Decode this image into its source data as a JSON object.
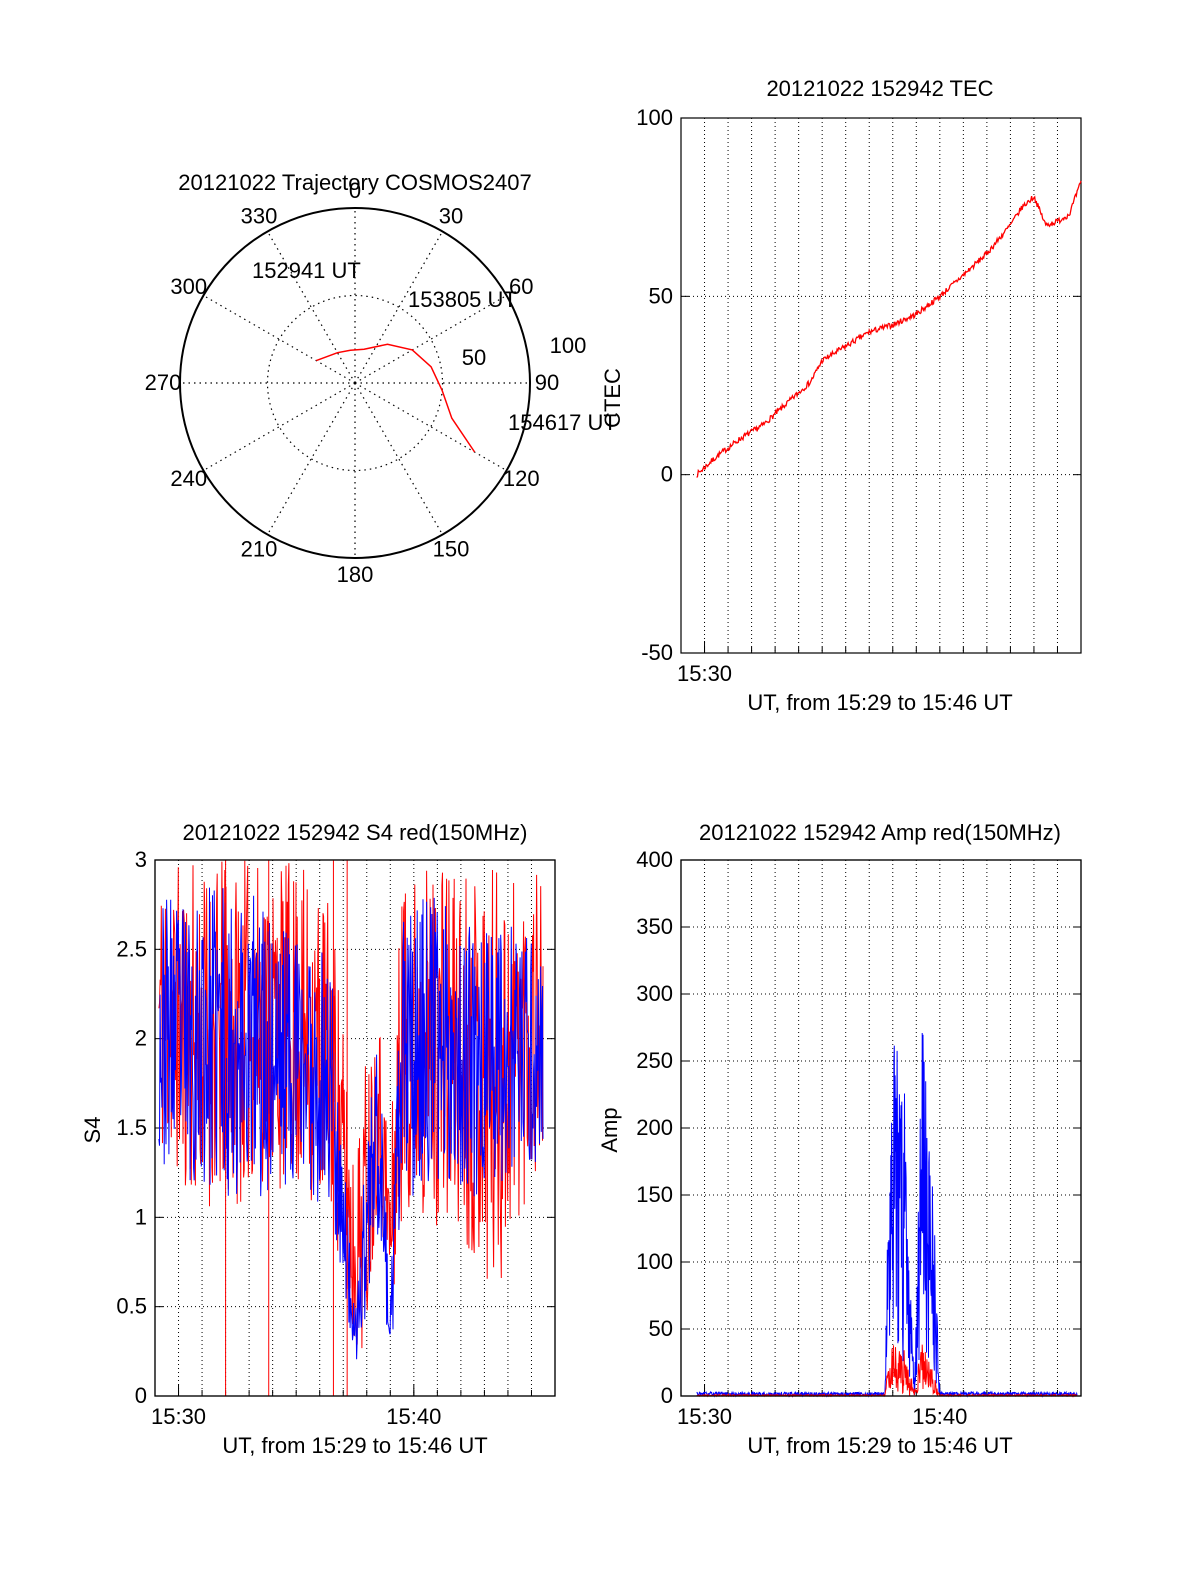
{
  "chart_data": [
    {
      "type": "polar",
      "title": "20121022 Trajectory COSMOS2407",
      "azimuth_ticks": [
        "0",
        "30",
        "60",
        "90",
        "120",
        "150",
        "180",
        "210",
        "240",
        "270",
        "300",
        "330"
      ],
      "radial_ticks": [
        "50",
        "100"
      ],
      "radial_range": [
        0,
        100
      ],
      "grid": true,
      "track_color": "#ff0000",
      "track": [
        {
          "az": 300,
          "el": 67
        },
        {
          "az": 330,
          "el": 72
        },
        {
          "az": 352,
          "el": 73
        },
        {
          "az": 15,
          "el": 72
        },
        {
          "az": 40,
          "el": 64
        },
        {
          "az": 60,
          "el": 56
        },
        {
          "az": 78,
          "el": 50
        },
        {
          "az": 95,
          "el": 45
        },
        {
          "az": 110,
          "el": 37
        },
        {
          "az": 120,
          "el": 19
        }
      ],
      "annotations": [
        "152941 UT",
        "153805 UT",
        "154617 UT"
      ]
    },
    {
      "type": "line",
      "title": "20121022 152942 TEC",
      "xlabel": "UT, from 15:29 to 15:46 UT",
      "ylabel": "CTEC",
      "ylim": [
        -50,
        100
      ],
      "xlim": [
        "15:29",
        "15:46"
      ],
      "xticks": [
        "15:30"
      ],
      "yticks": [
        "-50",
        "0",
        "50",
        "100"
      ],
      "grid": true,
      "series": [
        {
          "color": "#ff0000",
          "x": [
            "15:29:40",
            "15:30:30",
            "15:31:30",
            "15:32:30",
            "15:33:30",
            "15:34:30",
            "15:35:00",
            "15:36:00",
            "15:37:00",
            "15:38:00",
            "15:39:00",
            "15:40:00",
            "15:41:00",
            "15:42:00",
            "15:43:00",
            "15:43:30",
            "15:44:00",
            "15:44:30",
            "15:45:00",
            "15:45:30",
            "15:46:00"
          ],
          "values": [
            0,
            5,
            10,
            14,
            20,
            26,
            32,
            36,
            40,
            42,
            45,
            50,
            56,
            62,
            70,
            75,
            78,
            70,
            71,
            73,
            82
          ]
        }
      ]
    },
    {
      "type": "line",
      "title": "20121022 152942 S4 red(150MHz)",
      "xlabel": "UT, from 15:29 to 15:46 UT",
      "ylabel": "S4",
      "ylim": [
        0,
        3
      ],
      "xlim": [
        "15:29",
        "15:46"
      ],
      "xticks": [
        "15:30",
        "15:40"
      ],
      "yticks": [
        "0",
        "0.5",
        "1",
        "1.5",
        "2",
        "2.5",
        "3"
      ],
      "grid": true,
      "series": [
        {
          "color": "#ff0000",
          "x": [
            "15:29:10",
            "15:30:30",
            "15:32:00",
            "15:33:30",
            "15:35:00",
            "15:36:30",
            "15:37:30",
            "15:38:00",
            "15:38:30",
            "15:39:00",
            "15:39:30",
            "15:40:30",
            "15:41:30",
            "15:42:30",
            "15:43:30",
            "15:44:30",
            "15:45:30"
          ],
          "low": [
            1.3,
            1.1,
            1.0,
            1.2,
            1.1,
            1.0,
            0.2,
            0.3,
            1.2,
            0.3,
            1.0,
            1.0,
            0.9,
            0.8,
            0.5,
            1.0,
            1.3
          ],
          "high": [
            3.0,
            3.0,
            3.0,
            3.0,
            3.0,
            2.8,
            1.3,
            2.0,
            2.2,
            1.4,
            3.0,
            3.0,
            3.0,
            3.0,
            3.0,
            3.0,
            3.0
          ]
        },
        {
          "color": "#0000ff",
          "x": [
            "15:29:10",
            "15:30:30",
            "15:32:00",
            "15:33:30",
            "15:35:00",
            "15:36:30",
            "15:37:30",
            "15:38:00",
            "15:38:30",
            "15:39:00",
            "15:39:30",
            "15:40:30",
            "15:41:30",
            "15:42:30",
            "15:43:30",
            "15:44:30",
            "15:45:30"
          ],
          "low": [
            1.3,
            1.2,
            1.1,
            1.1,
            1.2,
            1.0,
            0.15,
            0.2,
            0.9,
            0.15,
            1.0,
            1.2,
            1.2,
            1.1,
            1.2,
            1.2,
            1.3
          ],
          "high": [
            2.8,
            2.8,
            2.9,
            2.8,
            2.6,
            2.5,
            0.4,
            1.7,
            2.1,
            0.5,
            2.7,
            2.8,
            2.8,
            2.6,
            2.7,
            2.6,
            2.5
          ]
        }
      ]
    },
    {
      "type": "line",
      "title": "20121022 152942 Amp red(150MHz)",
      "xlabel": "UT, from 15:29 to 15:46 UT",
      "ylabel": "Amp",
      "ylim": [
        0,
        400
      ],
      "xlim": [
        "15:29",
        "15:46"
      ],
      "xticks": [
        "15:30",
        "15:40"
      ],
      "yticks": [
        "0",
        "50",
        "100",
        "150",
        "200",
        "250",
        "300",
        "350",
        "400"
      ],
      "grid": true,
      "series": [
        {
          "color": "#ff0000",
          "x": [
            "15:29:40",
            "15:37:40",
            "15:37:55",
            "15:38:30",
            "15:38:55",
            "15:39:15",
            "15:39:35",
            "15:40:00",
            "15:45:50"
          ],
          "low": [
            0,
            0,
            5,
            0,
            0,
            5,
            0,
            0,
            0
          ],
          "high": [
            1,
            1,
            45,
            35,
            5,
            40,
            25,
            1,
            1
          ]
        },
        {
          "color": "#0000ff",
          "x": [
            "15:29:40",
            "15:37:40",
            "15:37:55",
            "15:38:30",
            "15:38:55",
            "15:39:15",
            "15:39:35",
            "15:40:00",
            "15:45:50"
          ],
          "low": [
            0,
            0,
            50,
            20,
            0,
            30,
            20,
            0,
            0
          ],
          "high": [
            3,
            3,
            285,
            230,
            5,
            275,
            230,
            3,
            3
          ]
        }
      ]
    }
  ]
}
